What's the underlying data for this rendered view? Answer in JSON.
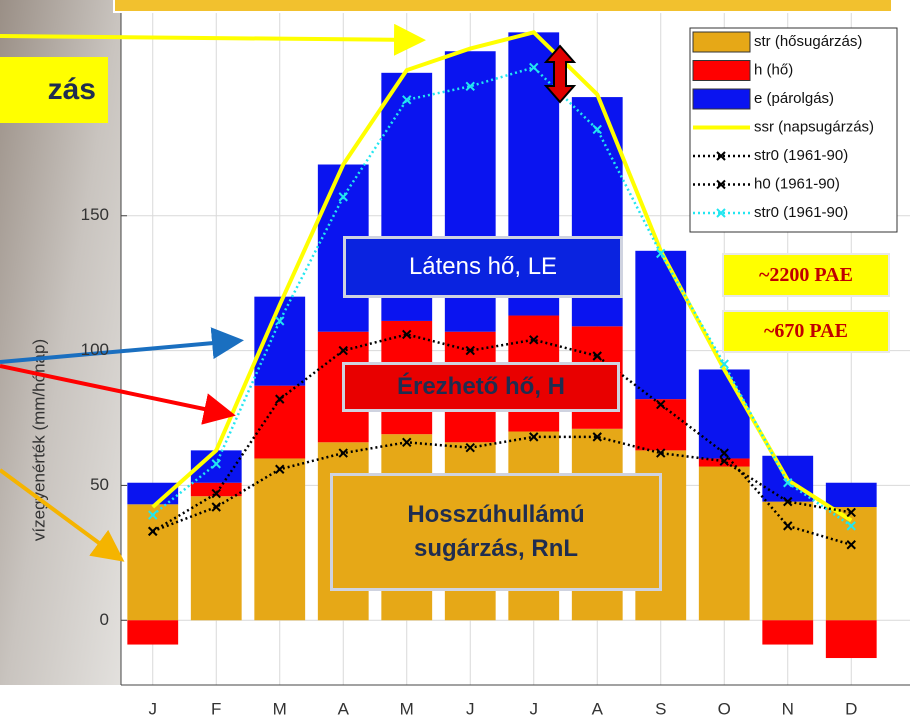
{
  "chart_data": {
    "type": "bar",
    "ylabel": "vízegyenérték (mm/hónap)",
    "categories": [
      "J",
      "F",
      "M",
      "A",
      "M",
      "J",
      "J",
      "A",
      "S",
      "O",
      "N",
      "D"
    ],
    "ylim": [
      -24,
      230
    ],
    "yticks": [
      0,
      50,
      100,
      150
    ],
    "grid": true,
    "series": [
      {
        "name": "str (hősugárzás)",
        "kind": "bar",
        "color": "#e6a817",
        "values": [
          43,
          46,
          60,
          66,
          69,
          66,
          70,
          71,
          63,
          57,
          44,
          42
        ]
      },
      {
        "name": "h (hő)",
        "kind": "bar",
        "color": "#ff0000",
        "values": [
          -9,
          5,
          27,
          41,
          42,
          41,
          43,
          38,
          19,
          3,
          -9,
          -14
        ]
      },
      {
        "name": "e (párolgás)",
        "kind": "bar",
        "color": "#0a14f0",
        "values": [
          8,
          12,
          33,
          62,
          92,
          104,
          105,
          85,
          55,
          33,
          17,
          9
        ]
      },
      {
        "name": "ssr (napsugárzás)",
        "kind": "line",
        "color": "#ffff00",
        "linestyle": "solid",
        "values": [
          42,
          63,
          117,
          169,
          204,
          212,
          218,
          195,
          137,
          93,
          52,
          37
        ]
      },
      {
        "name": "str0 (1961-90)",
        "kind": "line",
        "color": "#000000",
        "linestyle": "dotted",
        "marker": "x",
        "values": [
          33,
          42,
          56,
          62,
          66,
          64,
          68,
          68,
          62,
          59,
          44,
          40
        ]
      },
      {
        "name": "h0 (1961-90)",
        "kind": "line",
        "color": "#000000",
        "linestyle": "dotted",
        "marker": "x",
        "values": [
          33,
          47,
          82,
          100,
          106,
          100,
          104,
          98,
          80,
          62,
          35,
          28
        ]
      },
      {
        "name": "str0 (1961-90)",
        "kind": "line",
        "color": "#22e6f0",
        "linestyle": "dotted",
        "marker": "x",
        "values": [
          39,
          58,
          111,
          157,
          193,
          198,
          205,
          182,
          136,
          95,
          51,
          35
        ]
      }
    ],
    "annotations": [
      "zás",
      "Látens hő, LE",
      "Érezhető hő, H",
      "Hosszúhullámú sugárzás, RnL",
      "~2200 PAE",
      "~670 PAE"
    ]
  }
}
